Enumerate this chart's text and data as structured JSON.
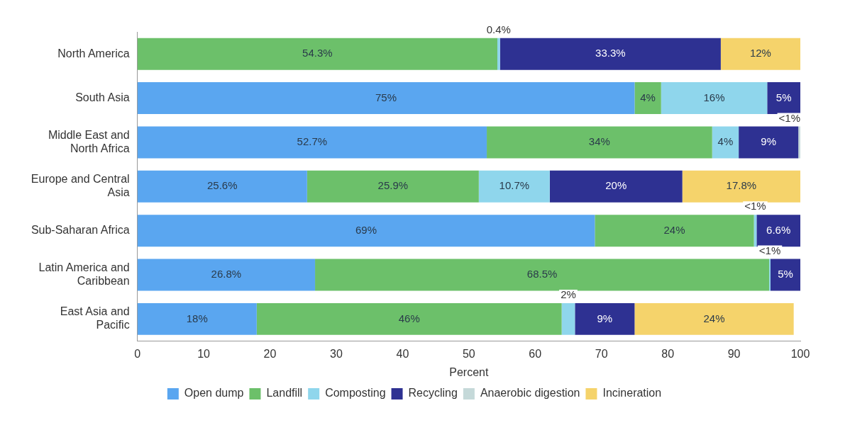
{
  "chart_data": {
    "type": "bar",
    "orientation": "horizontal",
    "stacked": true,
    "xlabel": "Percent",
    "categories": [
      "North America",
      "South Asia",
      "Middle East and North Africa",
      "Europe and Central Asia",
      "Sub-Saharan Africa",
      "Latin America and Caribbean",
      "East Asia and Pacific"
    ],
    "series": [
      {
        "name": "Open dump",
        "color": "#5aa6f0",
        "values": [
          null,
          75,
          52.7,
          25.6,
          69,
          26.8,
          18
        ],
        "value_labels": [
          null,
          "75%",
          "52.7%",
          "25.6%",
          "69%",
          "26.8%",
          "18%"
        ]
      },
      {
        "name": "Landfill",
        "color": "#6cc06a",
        "values": [
          54.3,
          4,
          34,
          25.9,
          24,
          68.5,
          46
        ],
        "value_labels": [
          "54.3%",
          "4%",
          "34%",
          "25.9%",
          "24%",
          "68.5%",
          "46%"
        ]
      },
      {
        "name": "Composting",
        "color": "#8fd6ec",
        "values": [
          0.4,
          16,
          4,
          10.7,
          0.4,
          0.2,
          2
        ],
        "value_labels": [
          "0.4%",
          "16%",
          "4%",
          "10.7%",
          "<1%",
          "<1%",
          "2%"
        ]
      },
      {
        "name": "Recycling",
        "color": "#2e3192",
        "values": [
          33.3,
          5,
          9,
          20,
          6.6,
          4.5,
          9
        ],
        "value_labels": [
          "33.3%",
          "5%",
          "9%",
          "20%",
          "6.6%",
          "5%",
          "9%"
        ]
      },
      {
        "name": "Anaerobic digestion",
        "color": "#c5d9d9",
        "values": [
          null,
          null,
          0.3,
          null,
          null,
          null,
          null
        ],
        "value_labels": [
          null,
          null,
          "<1%",
          null,
          null,
          null,
          null
        ]
      },
      {
        "name": "Incineration",
        "color": "#f5d36b",
        "values": [
          12,
          null,
          null,
          17.8,
          null,
          null,
          24
        ],
        "value_labels": [
          "12%",
          null,
          null,
          "17.8%",
          null,
          null,
          "24%"
        ]
      }
    ],
    "xlim": [
      0,
      100
    ],
    "xticks": [
      0,
      10,
      20,
      30,
      40,
      50,
      60,
      70,
      80,
      90,
      100
    ],
    "grid": false,
    "legend": "bottom"
  }
}
